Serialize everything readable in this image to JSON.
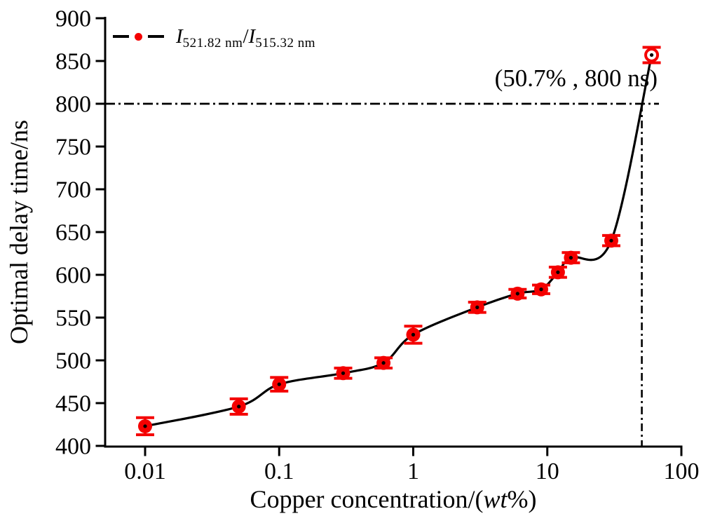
{
  "figure": {
    "background": "#ffffff",
    "axis_color": "#000000",
    "marker_color": "#f40000"
  },
  "legend": {
    "symbol_i1": "I",
    "symbol_sub1": "521.82 nm",
    "symbol_slash": "/",
    "symbol_i2": "I",
    "symbol_sub2": "515.32 nm"
  },
  "annotation": {
    "text": "(50.7% , 800 ns)"
  },
  "axes": {
    "x_title_prefix": "Copper concentration/(",
    "x_title_italic": "wt",
    "x_title_suffix": "%)",
    "y_title": "Optimal delay time/ns"
  },
  "chart_data": {
    "type": "line",
    "title": "",
    "xlabel": "Copper concentration/(wt%)",
    "ylabel": "Optimal delay time/ns",
    "x_scale": "log",
    "xlim": [
      0.005,
      105
    ],
    "ylim": [
      400,
      900
    ],
    "x_ticks": [
      0.01,
      0.1,
      1,
      10,
      100
    ],
    "x_tick_labels": [
      "0.01",
      "0.1",
      "1",
      "10",
      "100"
    ],
    "y_ticks": [
      400,
      450,
      500,
      550,
      600,
      650,
      700,
      750,
      800,
      850,
      900
    ],
    "grid": false,
    "legend_position": "top-left",
    "series": [
      {
        "name": "I521.82 nm/I515.32 nm",
        "x": [
          0.01,
          0.05,
          0.1,
          0.3,
          0.6,
          1,
          3,
          6,
          9,
          12,
          15,
          30,
          60
        ],
        "y": [
          423,
          446,
          472,
          485,
          497,
          530,
          562,
          578,
          583,
          603,
          620,
          640,
          857
        ],
        "yerr": [
          10,
          9,
          8,
          6,
          6,
          10,
          6,
          5,
          5,
          6,
          6,
          6,
          9
        ],
        "marker_color": "#f40000",
        "line_color": "#000000",
        "open_marker_indices": [
          12
        ]
      }
    ],
    "reference_lines": {
      "x": 50.7,
      "y": 800,
      "style": "dash-dot",
      "label": "(50.7% , 800 ns)"
    }
  }
}
